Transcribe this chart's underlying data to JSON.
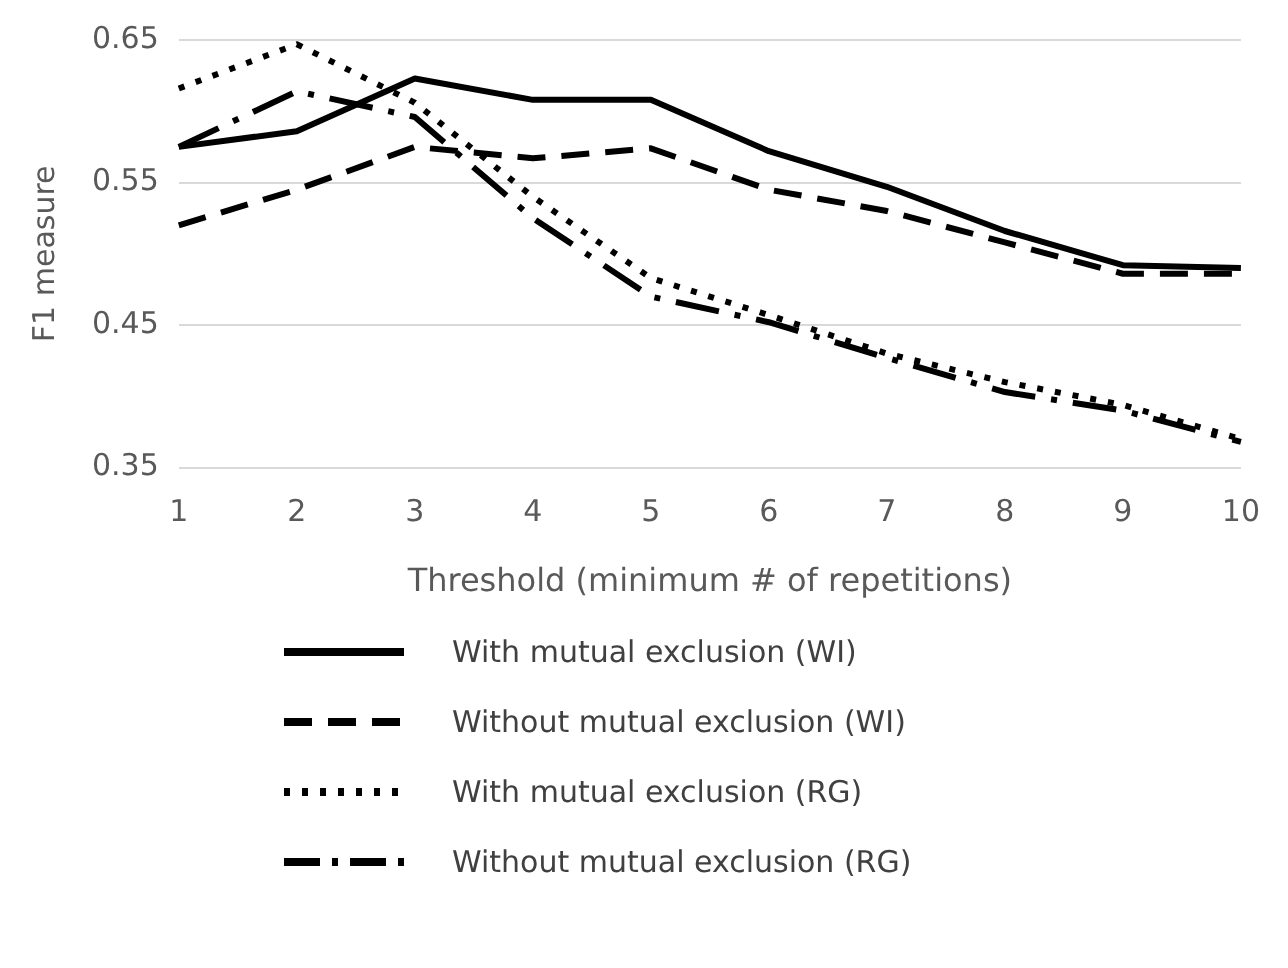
{
  "chart_data": {
    "type": "line",
    "xlabel": "Threshold (minimum # of repetitions)",
    "ylabel": "F1 measure",
    "categories": [
      "1",
      "2",
      "3",
      "4",
      "5",
      "6",
      "7",
      "8",
      "9",
      "10"
    ],
    "ylim": [
      0.35,
      0.65
    ],
    "yticks": [
      0.35,
      0.45,
      0.55,
      0.65
    ],
    "grid": "y",
    "legend": "bottom",
    "marker": "none",
    "series": [
      {
        "name": "With mutual exclusion (WI)",
        "color": "#000000",
        "line_style": "solid",
        "values": [
          0.575,
          0.586,
          0.623,
          0.608,
          0.608,
          0.572,
          0.547,
          0.516,
          0.492,
          0.49
        ]
      },
      {
        "name": "Without mutual exclusion (WI)",
        "color": "#000000",
        "line_style": "dashed",
        "values": [
          0.52,
          0.545,
          0.575,
          0.567,
          0.574,
          0.545,
          0.53,
          0.508,
          0.486,
          0.486
        ]
      },
      {
        "name": "With mutual exclusion (RG)",
        "color": "#000000",
        "line_style": "dotted",
        "values": [
          0.616,
          0.647,
          0.606,
          0.54,
          0.483,
          0.457,
          0.43,
          0.41,
          0.394,
          0.37
        ]
      },
      {
        "name": "Without mutual exclusion (RG)",
        "color": "#000000",
        "line_style": "dashdot",
        "values": [
          0.575,
          0.614,
          0.596,
          0.525,
          0.47,
          0.452,
          0.427,
          0.403,
          0.39,
          0.368
        ]
      }
    ]
  }
}
